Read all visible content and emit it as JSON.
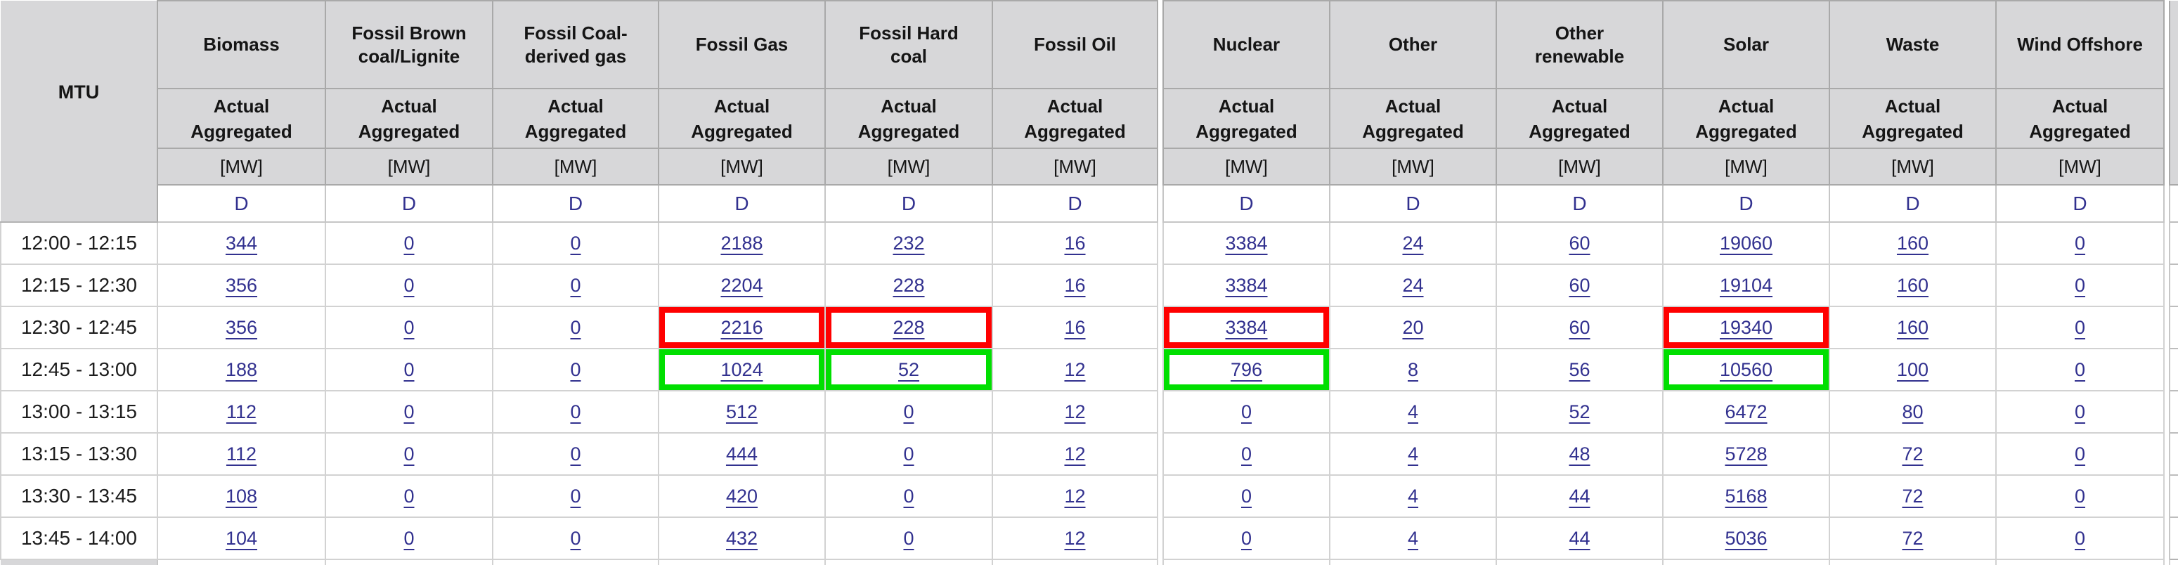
{
  "table": {
    "corner_label": "MTU",
    "subheader_label": "Actual Aggregated",
    "unit_label": "[MW]",
    "resolution_label": "D",
    "columns": [
      "Biomass",
      "Fossil Brown coal/Lignite",
      "Fossil Coal-derived gas",
      "Fossil Gas",
      "Fossil Hard coal",
      "Fossil Oil",
      "Nuclear",
      "Other",
      "Other renewable",
      "Solar",
      "Waste",
      "Wind Offshore"
    ],
    "rows": [
      {
        "mtu": "12:00 - 12:15",
        "values": [
          "344",
          "0",
          "0",
          "2188",
          "232",
          "16",
          "3384",
          "24",
          "60",
          "19060",
          "160",
          "0"
        ]
      },
      {
        "mtu": "12:15 - 12:30",
        "values": [
          "356",
          "0",
          "0",
          "2204",
          "228",
          "16",
          "3384",
          "24",
          "60",
          "19104",
          "160",
          "0"
        ]
      },
      {
        "mtu": "12:30 - 12:45",
        "values": [
          "356",
          "0",
          "0",
          "2216",
          "228",
          "16",
          "3384",
          "20",
          "60",
          "19340",
          "160",
          "0"
        ],
        "red": [
          3,
          4,
          6,
          9
        ]
      },
      {
        "mtu": "12:45 - 13:00",
        "values": [
          "188",
          "0",
          "0",
          "1024",
          "52",
          "12",
          "796",
          "8",
          "56",
          "10560",
          "100",
          "0"
        ],
        "green": [
          3,
          4,
          6,
          9
        ]
      },
      {
        "mtu": "13:00 - 13:15",
        "values": [
          "112",
          "0",
          "0",
          "512",
          "0",
          "12",
          "0",
          "4",
          "52",
          "6472",
          "80",
          "0"
        ]
      },
      {
        "mtu": "13:15 - 13:30",
        "values": [
          "112",
          "0",
          "0",
          "444",
          "0",
          "12",
          "0",
          "4",
          "48",
          "5728",
          "72",
          "0"
        ]
      },
      {
        "mtu": "13:30 - 13:45",
        "values": [
          "108",
          "0",
          "0",
          "420",
          "0",
          "12",
          "0",
          "4",
          "44",
          "5168",
          "72",
          "0"
        ]
      },
      {
        "mtu": "13:45 - 14:00",
        "values": [
          "104",
          "0",
          "0",
          "432",
          "0",
          "12",
          "0",
          "4",
          "44",
          "5036",
          "72",
          "0"
        ]
      }
    ],
    "colors": {
      "highlight_red": "#ff0000",
      "highlight_green": "#00df00",
      "header_bg": "#d7d7d9",
      "link_text": "#32318f"
    }
  }
}
